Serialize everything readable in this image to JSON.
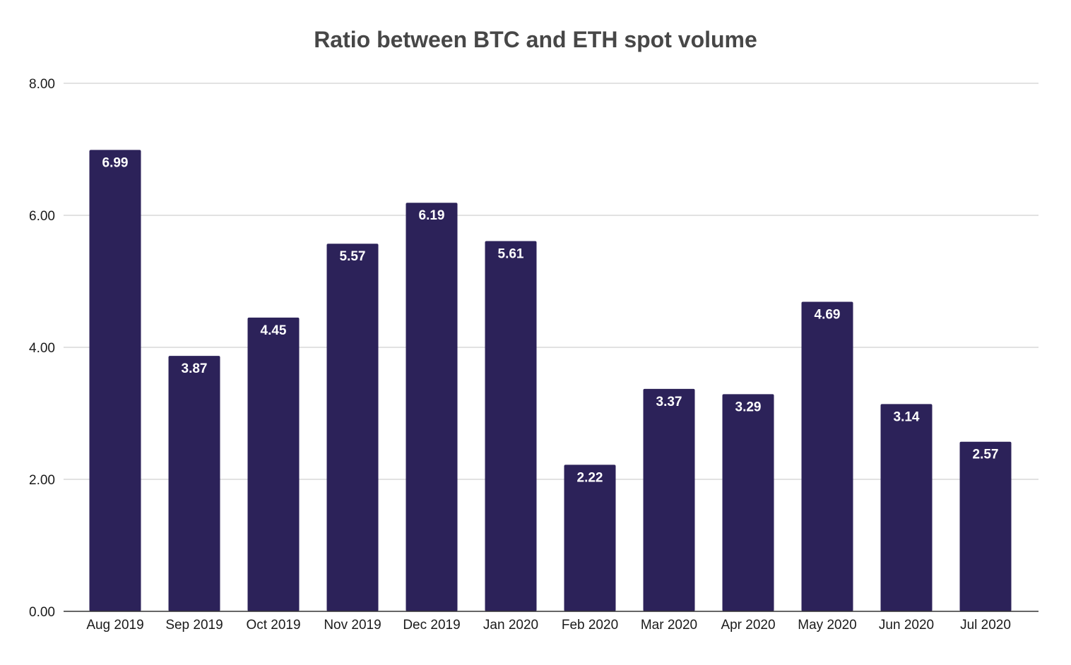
{
  "chart_data": {
    "type": "bar",
    "title": "Ratio between BTC and ETH spot volume",
    "xlabel": "",
    "ylabel": "",
    "categories": [
      "Aug 2019",
      "Sep 2019",
      "Oct 2019",
      "Nov 2019",
      "Dec 2019",
      "Jan 2020",
      "Feb 2020",
      "Mar 2020",
      "Apr 2020",
      "May 2020",
      "Jun 2020",
      "Jul 2020"
    ],
    "values": [
      6.99,
      3.87,
      4.45,
      5.57,
      6.19,
      5.61,
      2.22,
      3.37,
      3.29,
      4.69,
      3.14,
      2.57
    ],
    "data_labels": [
      "6.99",
      "3.87",
      "4.45",
      "5.57",
      "6.19",
      "5.61",
      "2.22",
      "3.37",
      "3.29",
      "4.69",
      "3.14",
      "2.57"
    ],
    "ylim": [
      0,
      8
    ],
    "yticks": [
      0,
      2,
      4,
      6,
      8
    ],
    "ytick_labels": [
      "0.00",
      "2.00",
      "4.00",
      "6.00",
      "8.00"
    ],
    "grid": true,
    "legend": "none",
    "bar_color": "#2c2259",
    "grid_color": "#d9d9d9",
    "axis_color": "#333333"
  }
}
